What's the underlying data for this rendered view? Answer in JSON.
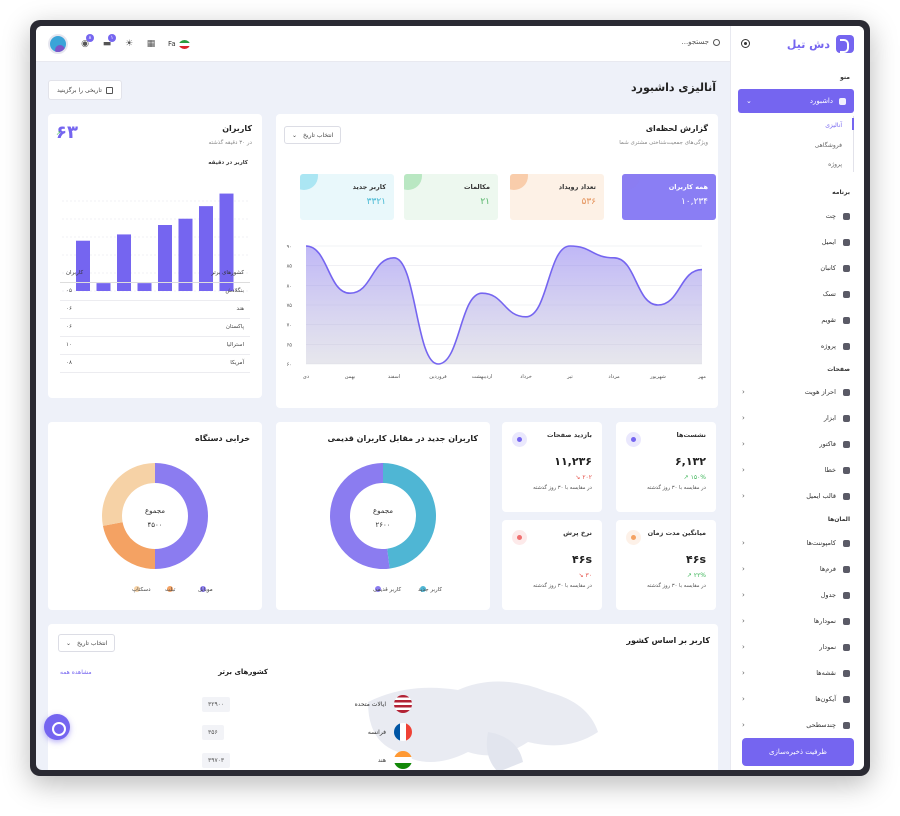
{
  "app": {
    "name": "دش تیل"
  },
  "search": {
    "placeholder": "جستجو..."
  },
  "topbar": {
    "lang": "Fa",
    "badges": [
      "۸",
      "۱"
    ]
  },
  "sidebar": {
    "menu_heading": "منو",
    "dashboard": "داشبورد",
    "sub": [
      "آنالیزی",
      "فروشگاهی",
      "پروژه"
    ],
    "apps_heading": "برنامه",
    "apps": [
      "چت",
      "ایمیل",
      "کانبان",
      "تسک",
      "تقویم",
      "پروژه"
    ],
    "pages_heading": "صفحات",
    "pages": [
      "احراز هویت",
      "ابزار",
      "فاکتور",
      "خطا",
      "قالب ایمیل"
    ],
    "elements_heading": "المان‌ها",
    "elements": [
      "کامپوننت‌ها",
      "فرم‌ها",
      "جدول",
      "نمودارها",
      "نمودار",
      "نقشه‌ها",
      "آیکون‌ها",
      "چندسطحی"
    ],
    "storage": "ظرفیت ذخیره‌سازی"
  },
  "page": {
    "title": "آنالیزی داشبورد",
    "date_button": "تاریخی را برگزینید"
  },
  "realtime": {
    "title": "گزارش لحظه‌ای",
    "subtitle": "ویژگی‌های جمعیت‌شناختی مشتری شما",
    "select": "انتخاب تاریخ",
    "stats": [
      {
        "label": "همه کاربران",
        "value": "۱۰,۲۳۴",
        "color": "#8b7cf0",
        "bg": "#8a7ef4",
        "fg": "#ffffff"
      },
      {
        "label": "تعداد رویداد",
        "value": "۵۳۶",
        "color": "#f4a263",
        "bg": "#fdf1e6",
        "fg": "#e4925a"
      },
      {
        "label": "مکالمات",
        "value": "۲۱",
        "color": "#7ad38c",
        "bg": "#edf8ef",
        "fg": "#56b56a"
      },
      {
        "label": "کاربر جدید",
        "value": "۳۳۲۱",
        "color": "#5fd0e8",
        "bg": "#e9f8fb",
        "fg": "#45b8d3"
      }
    ]
  },
  "chart_data": [
    {
      "type": "area",
      "x": [
        "مهر",
        "شهریور",
        "مرداد",
        "تیر",
        "خرداد",
        "اردیبهشت",
        "فروردین",
        "اسفند",
        "بهمن",
        "دی"
      ],
      "values": [
        80,
        65,
        85,
        90,
        60,
        70,
        40,
        85,
        70,
        90
      ],
      "ylim": [
        40,
        90
      ],
      "yticks": [
        "۹۰",
        "۸۵",
        "۸۰",
        "۷۵",
        "۷۰",
        "۶۵",
        "۶۰"
      ],
      "color": "#7565f0"
    },
    {
      "type": "bar",
      "title": "کاربر در دقیقه",
      "values": [
        32,
        5,
        36,
        5,
        42,
        46,
        54,
        62
      ],
      "ylim": [
        0,
        70
      ],
      "color": "#7565f0"
    },
    {
      "type": "pie",
      "title": "کاربران جدید در مقابل کاربران قدیمی",
      "center_label": "مجموع",
      "total": "۲۶۰۰",
      "series": [
        {
          "name": "کاربر جدید",
          "value": 48,
          "color": "#4fb6d4"
        },
        {
          "name": "کاربر قدیمی",
          "value": 52,
          "color": "#8b7cf0"
        }
      ]
    },
    {
      "type": "pie",
      "title": "خرابی دستگاه",
      "center_label": "مجموع",
      "total": "۴۵۰۰",
      "series": [
        {
          "name": "موبایل",
          "value": 50,
          "color": "#8b7cf0"
        },
        {
          "name": "تبلت",
          "value": 22,
          "color": "#f4a263"
        },
        {
          "name": "دسکتاپ",
          "value": 28,
          "color": "#f6d2a6"
        }
      ]
    }
  ],
  "users": {
    "title": "کاربران",
    "subtitle": "در ۳۰ دقیقه گذشته",
    "value": "۶۳",
    "per_minute": "کاربر در دقیقه",
    "table_headers": [
      "کشورهای برتر",
      "کاربران"
    ],
    "rows": [
      [
        "بنگلادش",
        "۰۵"
      ],
      [
        "هند",
        "۰۶"
      ],
      [
        "پاکستان",
        "۰۶"
      ],
      [
        "استرالیا",
        "۱۰"
      ],
      [
        "آمریکا",
        "۰۸"
      ]
    ]
  },
  "minis": [
    {
      "title": "نشست‌ها",
      "value": "۶,۱۳۲",
      "pct": "۱۵۰%",
      "compare": "در مقایسه با ۳۰ روز گذشته",
      "up": true,
      "icon_color": "#7565f0",
      "icon": "pie-icon"
    },
    {
      "title": "بازدید صفحات",
      "value": "۱۱,۲۳۶",
      "pct": "۲۰۲",
      "compare": "در مقایسه با ۳۰ روز گذشته",
      "up": false,
      "icon_color": "#7565f0",
      "icon": "eye-icon"
    },
    {
      "title": "میانگین مدت زمان",
      "value": "۴۶s",
      "pct": "۲۲%",
      "compare": "در مقایسه با ۳۰ روز گذشته",
      "up": true,
      "icon_color": "#f4a263",
      "icon": "file-icon"
    },
    {
      "title": "نرخ پرش",
      "value": "۴۶s",
      "pct": "۳۰",
      "compare": "در مقایسه با ۳۰ روز گذشته",
      "up": false,
      "icon_color": "#f07070",
      "icon": "box-icon"
    }
  ],
  "country_card": {
    "title": "کاربر بر اساس کشور",
    "select": "انتخاب تاریخ",
    "top": "کشورهای برتر",
    "see_all": "مشاهده همه",
    "rows": [
      {
        "name": "ایالات متحده",
        "value": "۳۲۹۰۰"
      },
      {
        "name": "فرانسه",
        "value": "۳۵۶"
      },
      {
        "name": "هند",
        "value": "۳۹۷۰۳"
      }
    ]
  }
}
